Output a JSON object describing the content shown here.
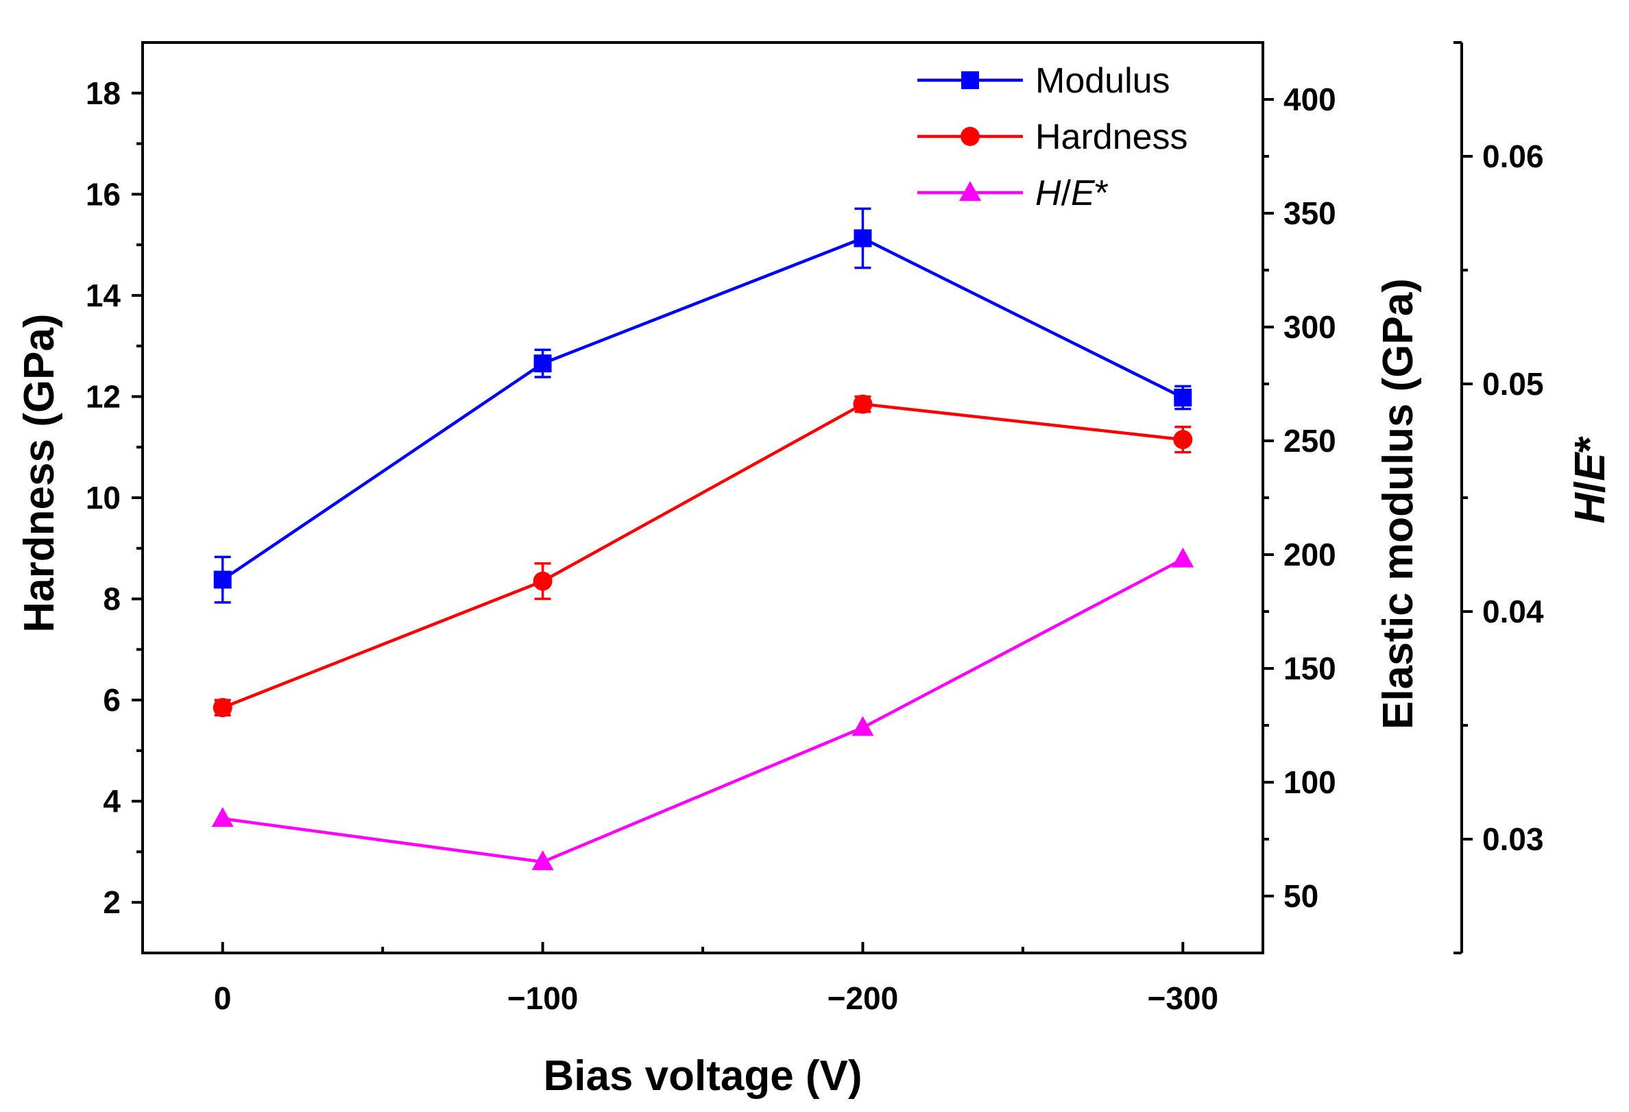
{
  "chart_data": {
    "type": "line",
    "xlabel": "Bias voltage (V)",
    "ylabel_left": "Hardness (GPa)",
    "ylabel_right": "Elastic modulus (GPa)",
    "ylabel_right2_parts": [
      "H",
      "/",
      "E",
      "*"
    ],
    "x_categories": [
      "0",
      "−100",
      "−200",
      "−300"
    ],
    "x_values": [
      0,
      -100,
      -200,
      -300
    ],
    "xlim": [
      25,
      -325
    ],
    "y_left": {
      "lim": [
        1,
        19
      ],
      "ticks": [
        2,
        4,
        6,
        8,
        10,
        12,
        14,
        16,
        18
      ]
    },
    "y_right": {
      "lim": [
        25,
        425
      ],
      "ticks": [
        50,
        100,
        150,
        200,
        250,
        300,
        350,
        400
      ]
    },
    "y_right2": {
      "lim": [
        0.025,
        0.065
      ],
      "ticks": [
        0.03,
        0.04,
        0.05,
        0.06
      ],
      "tick_labels": [
        "0.03",
        "0.04",
        "0.05",
        "0.06"
      ]
    },
    "series": [
      {
        "name": "Modulus",
        "axis": "right",
        "color": "#0000ff",
        "marker": "square",
        "values": [
          189,
          284,
          339,
          269
        ],
        "errors": [
          10,
          6,
          13,
          5
        ]
      },
      {
        "name": "Hardness",
        "axis": "left",
        "color": "#ff0000",
        "marker": "circle",
        "values": [
          5.85,
          8.35,
          11.85,
          11.15
        ],
        "errors": [
          0.15,
          0.35,
          0.15,
          0.25
        ]
      },
      {
        "name_parts": [
          "H",
          "/",
          "E",
          "*"
        ],
        "axis": "right2",
        "color": "#ff00ff",
        "marker": "triangle",
        "values": [
          0.0309,
          0.029,
          0.0349,
          0.0423
        ],
        "errors": [
          0,
          0,
          0,
          0
        ]
      }
    ],
    "legend_position": "top-right",
    "grid": false
  }
}
